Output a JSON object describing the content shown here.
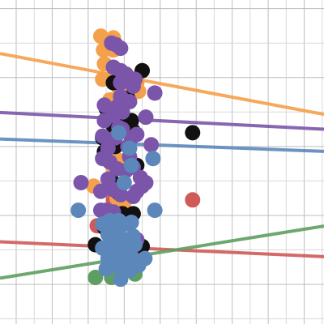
{
  "chart_data": {
    "type": "scatter",
    "title": "",
    "xlabel": "",
    "ylabel": "",
    "xlim": [
      -6.9,
      11.1
    ],
    "ylim": [
      -1.15,
      8.25
    ],
    "grid": true,
    "legend": "none",
    "colors": {
      "background": "#ffffff",
      "grid_minor": "#d9d9d9",
      "grid_major": "#bdbdbd",
      "orange": "#f5a04a",
      "purple": "#7b55aa",
      "blue": "#5c87ba",
      "red": "#cf5a58",
      "green": "#5e9e62",
      "black": "#111111"
    },
    "series": [
      {
        "color": "orange",
        "fit": {
          "intercept": 6.02,
          "slope": -0.098
        },
        "points": [
          [
            -1.3,
            7.2
          ],
          [
            -1.15,
            6.8
          ],
          [
            -0.6,
            6.8
          ],
          [
            -0.6,
            7.15
          ],
          [
            -1.1,
            6.4
          ],
          [
            -0.5,
            6.2
          ],
          [
            -0.45,
            6.05
          ],
          [
            0.3,
            6.0
          ],
          [
            0.7,
            5.85
          ],
          [
            0.8,
            5.6
          ],
          [
            -0.3,
            5.7
          ],
          [
            -0.1,
            5.55
          ],
          [
            -1.2,
            5.95
          ],
          [
            -0.8,
            5.35
          ],
          [
            0.2,
            5.3
          ],
          [
            -0.9,
            4.9
          ],
          [
            -0.4,
            4.7
          ],
          [
            0.1,
            4.6
          ],
          [
            -0.5,
            4.25
          ],
          [
            -0.9,
            3.85
          ],
          [
            -0.3,
            3.6
          ],
          [
            -0.6,
            3.35
          ],
          [
            -0.7,
            2.95
          ],
          [
            -1.7,
            2.85
          ],
          [
            -0.4,
            2.5
          ],
          [
            0.0,
            2.4
          ]
        ]
      },
      {
        "color": "purple",
        "fit": {
          "intercept": 4.8,
          "slope": -0.027
        },
        "points": [
          [
            -0.7,
            7.0
          ],
          [
            -0.45,
            6.95
          ],
          [
            -0.2,
            6.85
          ],
          [
            -0.6,
            6.3
          ],
          [
            -0.2,
            6.2
          ],
          [
            0.1,
            6.1
          ],
          [
            0.6,
            5.95
          ],
          [
            -0.2,
            5.85
          ],
          [
            0.5,
            5.75
          ],
          [
            1.7,
            5.55
          ],
          [
            -0.2,
            5.45
          ],
          [
            0.3,
            5.3
          ],
          [
            -1.1,
            5.2
          ],
          [
            -0.4,
            5.15
          ],
          [
            -0.1,
            5.0
          ],
          [
            -0.6,
            4.9
          ],
          [
            -1.1,
            4.75
          ],
          [
            1.2,
            4.85
          ],
          [
            -0.3,
            4.55
          ],
          [
            -0.1,
            4.5
          ],
          [
            -1.2,
            4.3
          ],
          [
            0.4,
            4.25
          ],
          [
            0.7,
            4.35
          ],
          [
            -0.5,
            4.25
          ],
          [
            -0.9,
            3.95
          ],
          [
            0.2,
            4.0
          ],
          [
            1.5,
            4.05
          ],
          [
            -1.2,
            3.65
          ],
          [
            -0.8,
            3.55
          ],
          [
            0.3,
            3.7
          ],
          [
            -0.4,
            3.35
          ],
          [
            0.1,
            3.3
          ],
          [
            0.5,
            3.4
          ],
          [
            -0.9,
            3.05
          ],
          [
            0.9,
            3.1
          ],
          [
            -2.4,
            2.95
          ],
          [
            1.2,
            2.95
          ],
          [
            0.7,
            2.7
          ],
          [
            1.0,
            2.85
          ],
          [
            -1.3,
            2.7
          ],
          [
            -0.6,
            2.75
          ],
          [
            -0.2,
            2.6
          ],
          [
            0.5,
            2.55
          ],
          [
            -1.3,
            2.15
          ],
          [
            -0.6,
            2.1
          ],
          [
            -1.0,
            2.15
          ],
          [
            0.7,
            1.3
          ]
        ]
      },
      {
        "color": "blue",
        "fit": {
          "intercept": 4.08,
          "slope": -0.02
        },
        "points": [
          [
            -0.3,
            4.4
          ],
          [
            0.3,
            3.95
          ],
          [
            1.6,
            3.65
          ],
          [
            0.4,
            3.45
          ],
          [
            0.0,
            2.95
          ],
          [
            -2.55,
            2.15
          ],
          [
            1.7,
            2.15
          ],
          [
            -0.8,
            1.85
          ],
          [
            -0.3,
            1.85
          ],
          [
            0.4,
            1.8
          ],
          [
            -1.2,
            1.75
          ],
          [
            0.0,
            1.75
          ],
          [
            -0.6,
            1.7
          ],
          [
            -0.9,
            1.45
          ],
          [
            -0.3,
            1.45
          ],
          [
            0.5,
            1.4
          ],
          [
            -0.8,
            1.2
          ],
          [
            -0.3,
            1.2
          ],
          [
            0.2,
            1.15
          ],
          [
            0.6,
            1.15
          ],
          [
            -1.2,
            1.05
          ],
          [
            -0.4,
            0.95
          ],
          [
            0.4,
            1.05
          ],
          [
            -0.9,
            0.75
          ],
          [
            -0.2,
            0.8
          ],
          [
            0.4,
            0.75
          ],
          [
            1.15,
            0.75
          ],
          [
            -1.0,
            0.45
          ],
          [
            0.0,
            0.45
          ],
          [
            0.3,
            0.4
          ],
          [
            -0.4,
            0.55
          ],
          [
            0.8,
            0.55
          ],
          [
            -0.2,
            0.15
          ]
        ]
      },
      {
        "color": "red",
        "fit": {
          "intercept": 1.07,
          "slope": -0.024
        },
        "points": [
          [
            3.8,
            2.45
          ],
          [
            0.1,
            3.4
          ],
          [
            -0.6,
            2.45
          ],
          [
            0.0,
            2.1
          ],
          [
            -1.5,
            1.7
          ],
          [
            0.3,
            1.05
          ],
          [
            0.9,
            0.9
          ]
        ]
      },
      {
        "color": "green",
        "fit": {
          "intercept": 0.76,
          "slope": 0.084
        },
        "points": [
          [
            -1.6,
            0.2
          ],
          [
            -0.7,
            0.2
          ],
          [
            0.6,
            0.3
          ],
          [
            -0.2,
            0.85
          ],
          [
            0.4,
            0.65
          ],
          [
            -0.6,
            1.15
          ]
        ]
      },
      {
        "color": "black",
        "fit": null,
        "points": [
          [
            1.0,
            6.2
          ],
          [
            -0.6,
            5.85
          ],
          [
            0.2,
            5.4
          ],
          [
            -1.0,
            5.1
          ],
          [
            -0.3,
            4.8
          ],
          [
            0.4,
            4.75
          ],
          [
            -0.6,
            4.6
          ],
          [
            0.5,
            4.45
          ],
          [
            -0.4,
            4.35
          ],
          [
            3.8,
            4.4
          ],
          [
            -1.2,
            4.25
          ],
          [
            -0.5,
            4.0
          ],
          [
            -1.1,
            3.85
          ],
          [
            0.7,
            3.45
          ],
          [
            -0.7,
            3.0
          ],
          [
            -0.3,
            2.65
          ],
          [
            -0.1,
            2.05
          ],
          [
            0.5,
            2.05
          ],
          [
            -1.1,
            1.65
          ],
          [
            -1.6,
            1.15
          ],
          [
            1.0,
            1.1
          ]
        ]
      }
    ]
  }
}
